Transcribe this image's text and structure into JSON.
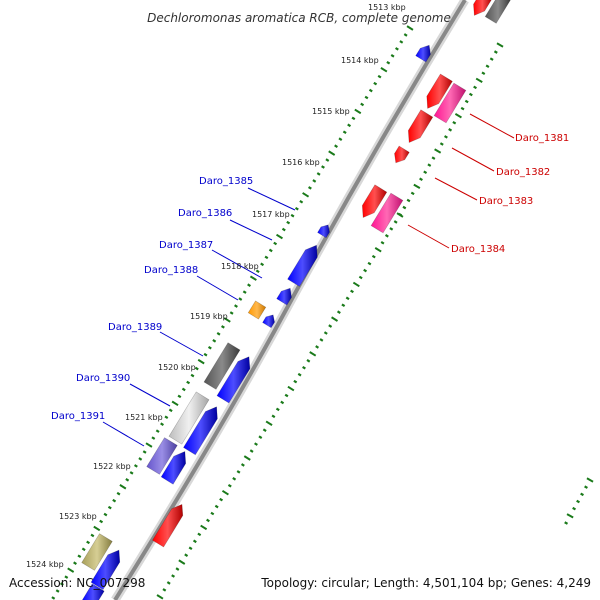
{
  "title": "Dechloromonas aromatica RCB, complete genome",
  "footer": {
    "accession_label": "Accession: NC_007298",
    "stats_label": "Topology: circular; Length: 4,501,104 bp; Genes: 4,249"
  },
  "colors": {
    "forward_label": "#0000cc",
    "reverse_label": "#cc0000",
    "ruler_tick": "#1a7a1a",
    "backbone": "#888888"
  },
  "ruler_labels": [
    "1513 kbp",
    "1514 kbp",
    "1515 kbp",
    "1516 kbp",
    "1517 kbp",
    "1518 kbp",
    "1519 kbp",
    "1520 kbp",
    "1521 kbp",
    "1522 kbp",
    "1523 kbp",
    "1524 kbp"
  ],
  "forward_gene_labels": [
    "Daro_1385",
    "Daro_1386",
    "Daro_1387",
    "Daro_1388",
    "Daro_1389",
    "Daro_1390",
    "Daro_1391"
  ],
  "reverse_gene_labels": [
    "Daro_1381",
    "Daro_1382",
    "Daro_1383",
    "Daro_1384"
  ]
}
